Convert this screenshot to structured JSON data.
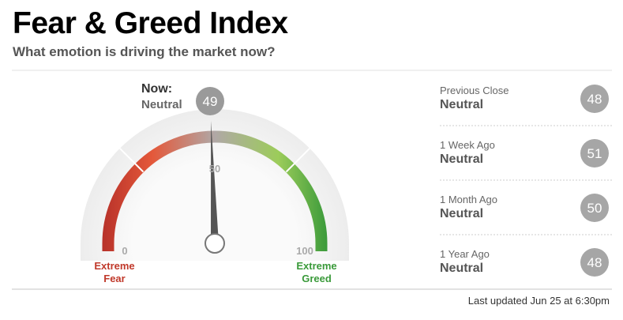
{
  "header": {
    "title": "Fear & Greed Index",
    "subtitle": "What emotion is driving the market now?"
  },
  "gauge": {
    "now_label": "Now:",
    "rating": "Neutral",
    "value": 49,
    "range": [
      0,
      100
    ],
    "ticks": [
      0,
      50,
      100
    ],
    "low_label": "Extreme Fear",
    "high_label": "Extreme Greed"
  },
  "history": [
    {
      "label": "Previous Close",
      "rating": "Neutral",
      "value": 48
    },
    {
      "label": "1 Week Ago",
      "rating": "Neutral",
      "value": 51
    },
    {
      "label": "1 Month Ago",
      "rating": "Neutral",
      "value": 50
    },
    {
      "label": "1 Year Ago",
      "rating": "Neutral",
      "value": 48
    }
  ],
  "footer": "Last updated Jun 25 at 6:30pm"
}
